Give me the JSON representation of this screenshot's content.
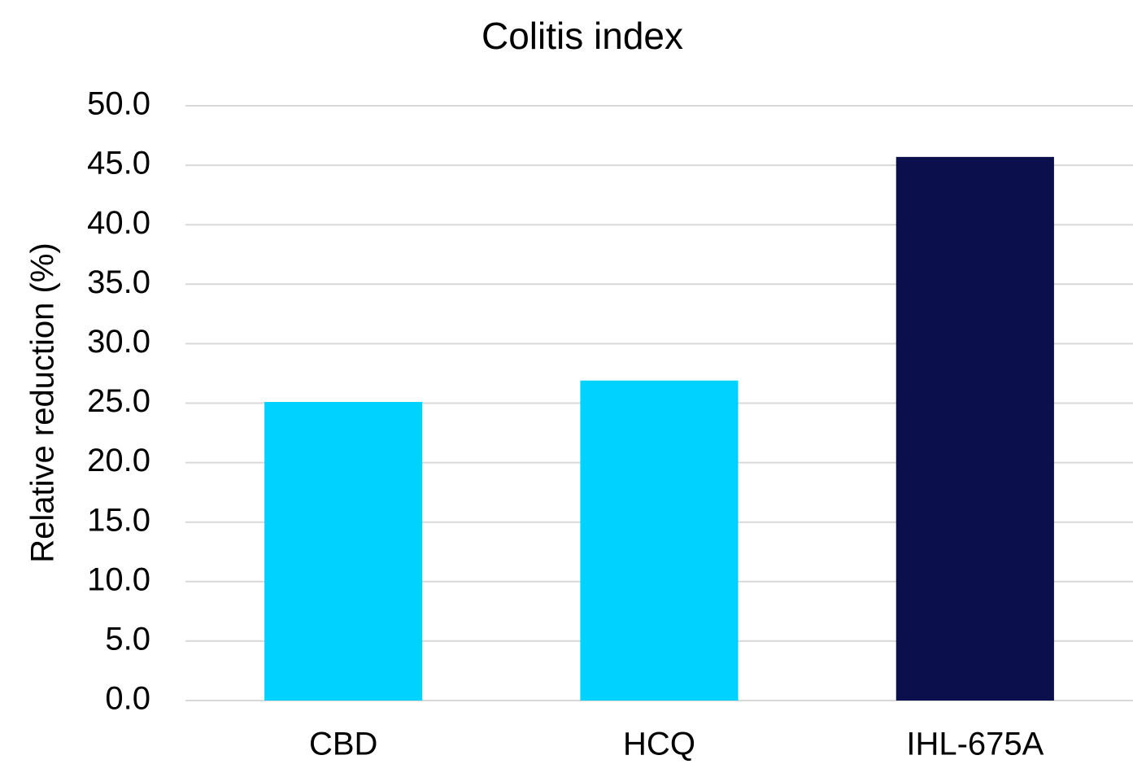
{
  "chart_data": {
    "type": "bar",
    "title": "Colitis index",
    "y_label": "Relative reduction (%)",
    "categories": [
      "CBD",
      "HCQ",
      "IHL-675A"
    ],
    "values": [
      25.1,
      26.9,
      45.7
    ],
    "colors": [
      "#00d2ff",
      "#00d2ff",
      "#0b104d"
    ],
    "ylim": [
      0,
      50
    ],
    "yticks": [
      {
        "value": 0,
        "label": "0.0"
      },
      {
        "value": 5,
        "label": "5.0"
      },
      {
        "value": 10,
        "label": "10.0"
      },
      {
        "value": 15,
        "label": "15.0"
      },
      {
        "value": 20,
        "label": "20.0"
      },
      {
        "value": 25,
        "label": "25.0"
      },
      {
        "value": 30,
        "label": "30.0"
      },
      {
        "value": 35,
        "label": "35.0"
      },
      {
        "value": 40,
        "label": "40.0"
      },
      {
        "value": 45,
        "label": "45.0"
      },
      {
        "value": 50,
        "label": "50.0"
      }
    ],
    "grid": true
  }
}
